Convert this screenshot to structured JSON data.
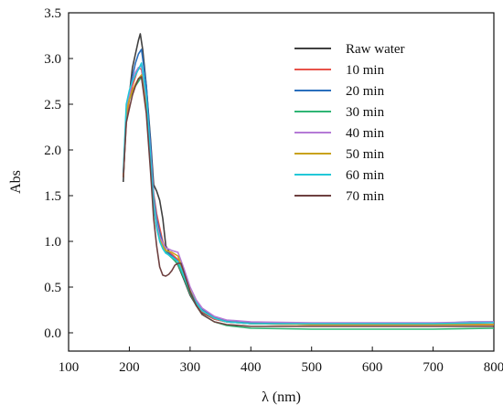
{
  "chart_data": {
    "type": "line",
    "xlabel": "λ (nm)",
    "ylabel": "Abs",
    "xlim": [
      100,
      800
    ],
    "ylim": [
      -0.2,
      3.5
    ],
    "xticks": [
      100,
      200,
      300,
      400,
      500,
      600,
      700,
      800
    ],
    "yticks": [
      0.0,
      0.5,
      1.0,
      1.5,
      2.0,
      2.5,
      3.0,
      3.5
    ],
    "xtick_labels": [
      "100",
      "200",
      "300",
      "400",
      "500",
      "600",
      "700",
      "800"
    ],
    "ytick_labels": [
      "0.0",
      "0.5",
      "1.0",
      "1.5",
      "2.0",
      "2.5",
      "3.0",
      "3.5"
    ],
    "grid": false,
    "legend_position": "top-right",
    "series": [
      {
        "name": "Raw water",
        "color": "#404040",
        "points": [
          [
            190,
            1.65
          ],
          [
            195,
            2.4
          ],
          [
            200,
            2.6
          ],
          [
            205,
            2.9
          ],
          [
            210,
            3.05
          ],
          [
            215,
            3.2
          ],
          [
            218,
            3.27
          ],
          [
            222,
            3.1
          ],
          [
            228,
            2.7
          ],
          [
            235,
            2.1
          ],
          [
            240,
            1.62
          ],
          [
            245,
            1.55
          ],
          [
            250,
            1.45
          ],
          [
            255,
            1.25
          ],
          [
            260,
            0.95
          ],
          [
            270,
            0.84
          ],
          [
            280,
            0.74
          ],
          [
            290,
            0.58
          ],
          [
            300,
            0.41
          ],
          [
            310,
            0.3
          ],
          [
            320,
            0.22
          ],
          [
            340,
            0.15
          ],
          [
            360,
            0.12
          ],
          [
            400,
            0.1
          ],
          [
            500,
            0.09
          ],
          [
            600,
            0.09
          ],
          [
            700,
            0.09
          ],
          [
            800,
            0.09
          ]
        ]
      },
      {
        "name": "10 min",
        "color": "#e8534a",
        "points": [
          [
            190,
            1.7
          ],
          [
            195,
            2.3
          ],
          [
            200,
            2.55
          ],
          [
            205,
            2.7
          ],
          [
            210,
            2.8
          ],
          [
            215,
            2.9
          ],
          [
            220,
            2.88
          ],
          [
            228,
            2.55
          ],
          [
            235,
            2.0
          ],
          [
            240,
            1.52
          ],
          [
            245,
            1.3
          ],
          [
            250,
            1.15
          ],
          [
            255,
            1.0
          ],
          [
            260,
            0.9
          ],
          [
            270,
            0.86
          ],
          [
            280,
            0.8
          ],
          [
            290,
            0.62
          ],
          [
            300,
            0.44
          ],
          [
            310,
            0.32
          ],
          [
            320,
            0.23
          ],
          [
            340,
            0.15
          ],
          [
            360,
            0.12
          ],
          [
            400,
            0.1
          ],
          [
            500,
            0.09
          ],
          [
            600,
            0.09
          ],
          [
            700,
            0.09
          ],
          [
            800,
            0.09
          ]
        ]
      },
      {
        "name": "20 min",
        "color": "#2a6fbd",
        "points": [
          [
            190,
            1.7
          ],
          [
            195,
            2.4
          ],
          [
            200,
            2.6
          ],
          [
            205,
            2.8
          ],
          [
            210,
            2.95
          ],
          [
            215,
            3.05
          ],
          [
            220,
            3.1
          ],
          [
            228,
            2.7
          ],
          [
            235,
            2.05
          ],
          [
            240,
            1.5
          ],
          [
            245,
            1.25
          ],
          [
            250,
            1.1
          ],
          [
            255,
            0.98
          ],
          [
            260,
            0.9
          ],
          [
            270,
            0.84
          ],
          [
            280,
            0.78
          ],
          [
            290,
            0.62
          ],
          [
            300,
            0.45
          ],
          [
            310,
            0.34
          ],
          [
            320,
            0.26
          ],
          [
            340,
            0.17
          ],
          [
            360,
            0.13
          ],
          [
            400,
            0.11
          ],
          [
            500,
            0.1
          ],
          [
            600,
            0.1
          ],
          [
            700,
            0.1
          ],
          [
            760,
            0.12
          ],
          [
            800,
            0.12
          ]
        ]
      },
      {
        "name": "30 min",
        "color": "#2fb574",
        "points": [
          [
            190,
            1.7
          ],
          [
            195,
            2.45
          ],
          [
            200,
            2.55
          ],
          [
            205,
            2.65
          ],
          [
            210,
            2.7
          ],
          [
            215,
            2.75
          ],
          [
            220,
            2.8
          ],
          [
            228,
            2.45
          ],
          [
            235,
            1.85
          ],
          [
            240,
            1.45
          ],
          [
            245,
            1.2
          ],
          [
            250,
            1.05
          ],
          [
            255,
            0.95
          ],
          [
            260,
            0.88
          ],
          [
            270,
            0.82
          ],
          [
            280,
            0.75
          ],
          [
            290,
            0.6
          ],
          [
            300,
            0.43
          ],
          [
            310,
            0.3
          ],
          [
            320,
            0.2
          ],
          [
            340,
            0.12
          ],
          [
            360,
            0.08
          ],
          [
            400,
            0.05
          ],
          [
            500,
            0.04
          ],
          [
            600,
            0.04
          ],
          [
            700,
            0.04
          ],
          [
            800,
            0.05
          ]
        ]
      },
      {
        "name": "40 min",
        "color": "#b57ad6",
        "points": [
          [
            190,
            1.72
          ],
          [
            195,
            2.4
          ],
          [
            200,
            2.6
          ],
          [
            205,
            2.75
          ],
          [
            210,
            2.85
          ],
          [
            215,
            2.9
          ],
          [
            220,
            2.92
          ],
          [
            228,
            2.55
          ],
          [
            235,
            1.95
          ],
          [
            240,
            1.45
          ],
          [
            245,
            1.2
          ],
          [
            250,
            1.05
          ],
          [
            255,
            0.98
          ],
          [
            260,
            0.93
          ],
          [
            270,
            0.9
          ],
          [
            280,
            0.88
          ],
          [
            290,
            0.7
          ],
          [
            300,
            0.5
          ],
          [
            310,
            0.36
          ],
          [
            320,
            0.27
          ],
          [
            340,
            0.18
          ],
          [
            360,
            0.14
          ],
          [
            400,
            0.12
          ],
          [
            500,
            0.11
          ],
          [
            600,
            0.11
          ],
          [
            700,
            0.11
          ],
          [
            800,
            0.12
          ]
        ]
      },
      {
        "name": "50 min",
        "color": "#c9a21a",
        "points": [
          [
            190,
            1.7
          ],
          [
            195,
            2.4
          ],
          [
            200,
            2.55
          ],
          [
            205,
            2.65
          ],
          [
            210,
            2.72
          ],
          [
            215,
            2.78
          ],
          [
            220,
            2.82
          ],
          [
            228,
            2.45
          ],
          [
            235,
            1.85
          ],
          [
            240,
            1.4
          ],
          [
            245,
            1.15
          ],
          [
            250,
            1.02
          ],
          [
            255,
            0.95
          ],
          [
            260,
            0.9
          ],
          [
            270,
            0.88
          ],
          [
            280,
            0.84
          ],
          [
            290,
            0.65
          ],
          [
            300,
            0.46
          ],
          [
            310,
            0.33
          ],
          [
            320,
            0.24
          ],
          [
            340,
            0.16
          ],
          [
            360,
            0.12
          ],
          [
            400,
            0.1
          ],
          [
            500,
            0.09
          ],
          [
            600,
            0.09
          ],
          [
            700,
            0.09
          ],
          [
            800,
            0.09
          ]
        ]
      },
      {
        "name": "60 min",
        "color": "#22c8d8",
        "points": [
          [
            190,
            1.75
          ],
          [
            195,
            2.5
          ],
          [
            200,
            2.65
          ],
          [
            205,
            2.75
          ],
          [
            210,
            2.82
          ],
          [
            215,
            2.88
          ],
          [
            220,
            2.95
          ],
          [
            228,
            2.6
          ],
          [
            235,
            1.9
          ],
          [
            240,
            1.4
          ],
          [
            245,
            1.15
          ],
          [
            250,
            1.0
          ],
          [
            255,
            0.92
          ],
          [
            260,
            0.87
          ],
          [
            270,
            0.83
          ],
          [
            280,
            0.78
          ],
          [
            290,
            0.62
          ],
          [
            300,
            0.45
          ],
          [
            310,
            0.33
          ],
          [
            320,
            0.24
          ],
          [
            340,
            0.16
          ],
          [
            360,
            0.12
          ],
          [
            400,
            0.1
          ],
          [
            500,
            0.1
          ],
          [
            600,
            0.1
          ],
          [
            700,
            0.1
          ],
          [
            800,
            0.11
          ]
        ]
      },
      {
        "name": "70 min",
        "color": "#6e4040",
        "points": [
          [
            190,
            1.7
          ],
          [
            195,
            2.3
          ],
          [
            200,
            2.45
          ],
          [
            205,
            2.6
          ],
          [
            210,
            2.7
          ],
          [
            215,
            2.78
          ],
          [
            220,
            2.8
          ],
          [
            228,
            2.4
          ],
          [
            235,
            1.75
          ],
          [
            240,
            1.25
          ],
          [
            245,
            0.95
          ],
          [
            250,
            0.72
          ],
          [
            255,
            0.63
          ],
          [
            260,
            0.62
          ],
          [
            265,
            0.64
          ],
          [
            270,
            0.68
          ],
          [
            275,
            0.74
          ],
          [
            280,
            0.76
          ],
          [
            285,
            0.76
          ],
          [
            290,
            0.66
          ],
          [
            300,
            0.45
          ],
          [
            310,
            0.3
          ],
          [
            320,
            0.2
          ],
          [
            340,
            0.12
          ],
          [
            360,
            0.09
          ],
          [
            400,
            0.07
          ],
          [
            500,
            0.07
          ],
          [
            600,
            0.07
          ],
          [
            700,
            0.07
          ],
          [
            800,
            0.07
          ]
        ]
      }
    ]
  }
}
